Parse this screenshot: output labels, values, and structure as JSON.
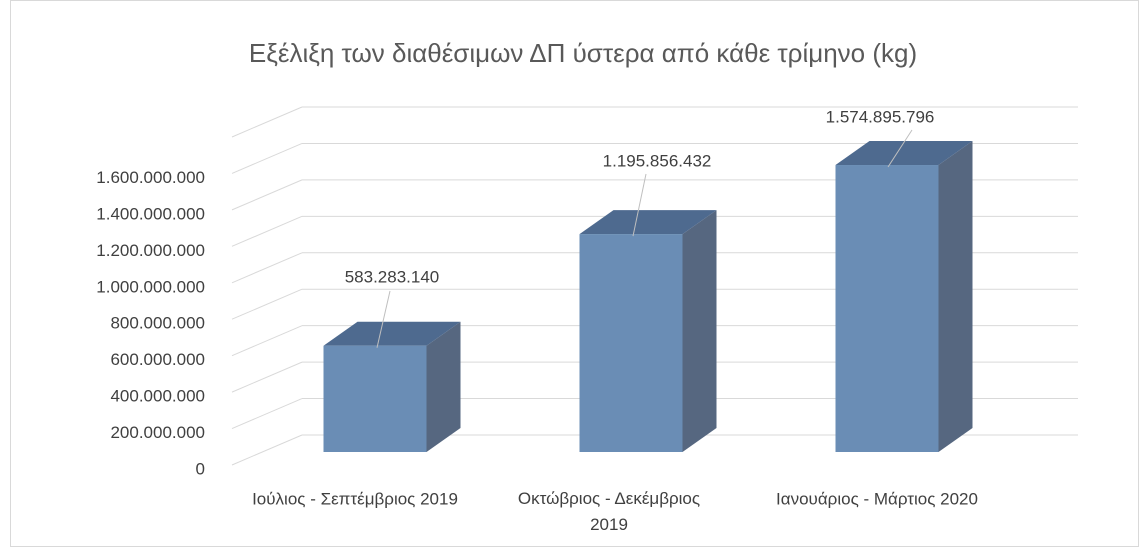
{
  "chart_data": {
    "type": "bar3d",
    "title": "Εξέλιξη των διαθέσιμων ΔΠ ύστερα από κάθε τρίμηνο (kg)",
    "categories": [
      "Ιούλιος - Σεπτέμβριος 2019",
      "Οκτώβριος - Δεκέμβριος 2019",
      "Ιανουάριος - Μάρτιος 2020"
    ],
    "values": [
      583283140,
      1195856432,
      1574895796
    ],
    "value_labels": [
      "583.283.140",
      "1.195.856.432",
      "1.574.895.796"
    ],
    "color": "#6a8db5",
    "ylim": [
      0,
      1800000000
    ],
    "yticks": [
      0,
      {
        "value": 200000000,
        "label": "200.000.000"
      },
      {
        "value": 400000000,
        "label": "400.000.000"
      },
      {
        "value": 600000000,
        "label": "600.000.000"
      },
      {
        "value": 800000000,
        "label": "800.000.000"
      },
      {
        "value": 1000000000,
        "label": "1.000.000.000"
      },
      {
        "value": 1200000000,
        "label": "1.200.000.000"
      },
      {
        "value": 1400000000,
        "label": "1.400.000.000"
      },
      {
        "value": 1600000000,
        "label": "1.600.000.000"
      }
    ],
    "grid": true
  }
}
